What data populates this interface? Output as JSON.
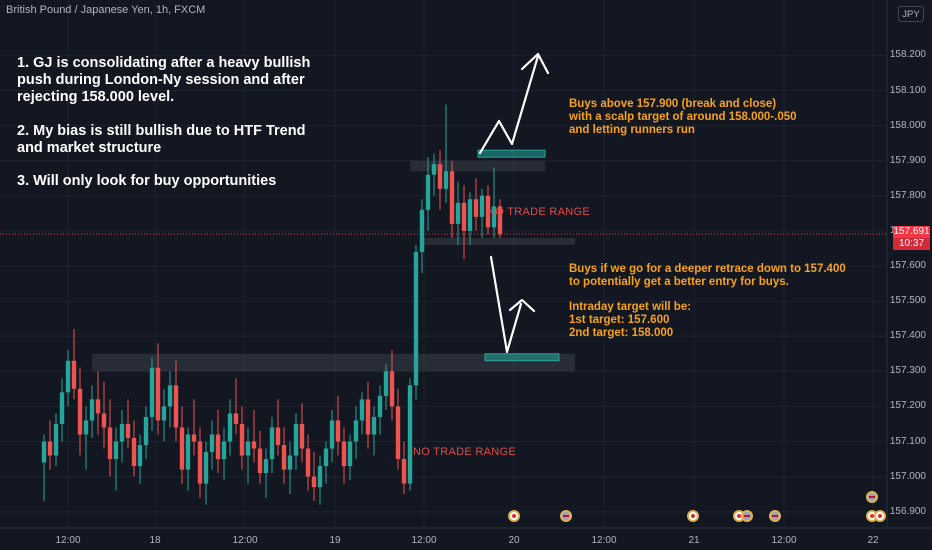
{
  "header": {
    "title": "British Pound / Japanese Yen, 1h, FXCM"
  },
  "currency_label": "JPY",
  "notes": {
    "left": [
      "1. GJ is consolidating after a heavy bullish",
      "push during London-Ny session and after",
      "rejecting 158.000 level.",
      "",
      "2. My bias is still bullish due to HTF Trend",
      "and market structure",
      "",
      "3. Will only look for buy opportunities"
    ],
    "upper_right": [
      "Buys above 157.900 (break and close)",
      "with a scalp target of around 158.000-.050",
      "and letting runners run"
    ],
    "lower_right": [
      "Buys if we go for a deeper retrace down to 157.400",
      "to potentially get a better entry for buys.",
      "",
      "Intraday target will be:",
      "1st target: 157.600",
      "2nd target: 158.000"
    ]
  },
  "labels": {
    "no_trade_upper": "NO TRADE RANGE",
    "no_trade_lower": "NO TRADE RANGE"
  },
  "price_axis": {
    "ticks": [
      "158.200",
      "158.100",
      "158.000",
      "157.900",
      "157.800",
      "157.700",
      "157.600",
      "157.500",
      "157.400",
      "157.300",
      "157.200",
      "157.100",
      "157.000",
      "156.900"
    ],
    "current_price": "157.691",
    "countdown": "10:37"
  },
  "time_axis": {
    "ticks": [
      "12:00",
      "18",
      "12:00",
      "19",
      "12:00",
      "20",
      "12:00",
      "21",
      "12:00",
      "22"
    ]
  },
  "colors": {
    "background": "#131722",
    "up": "#26a69a",
    "down": "#ef5350",
    "note_orange": "#f7a21b",
    "no_trade": "#e04a4a"
  },
  "chart_data": {
    "type": "candlestick",
    "symbol": "GBPJPY",
    "ylim": [
      156.88,
      158.27
    ],
    "current_price": 157.691,
    "zones": [
      {
        "kind": "range",
        "from": 157.87,
        "to": 157.9
      },
      {
        "kind": "range",
        "from": 157.66,
        "to": 157.68
      },
      {
        "kind": "range",
        "from": 157.3,
        "to": 157.35
      },
      {
        "kind": "buy-zone",
        "from": 157.91,
        "to": 157.93
      },
      {
        "kind": "buy-zone",
        "from": 157.33,
        "to": 157.35
      }
    ],
    "candles": [
      [
        157.04,
        157.12,
        156.93,
        157.1
      ],
      [
        157.1,
        157.16,
        157.02,
        157.06
      ],
      [
        157.06,
        157.18,
        157.03,
        157.15
      ],
      [
        157.15,
        157.28,
        157.1,
        157.24
      ],
      [
        157.24,
        157.36,
        157.2,
        157.33
      ],
      [
        157.33,
        157.42,
        157.22,
        157.25
      ],
      [
        157.25,
        157.31,
        157.06,
        157.12
      ],
      [
        157.12,
        157.2,
        157.02,
        157.16
      ],
      [
        157.16,
        157.26,
        157.11,
        157.22
      ],
      [
        157.22,
        157.3,
        157.12,
        157.18
      ],
      [
        157.18,
        157.27,
        157.08,
        157.14
      ],
      [
        157.14,
        157.22,
        157.0,
        157.05
      ],
      [
        157.05,
        157.14,
        156.96,
        157.1
      ],
      [
        157.1,
        157.19,
        157.04,
        157.15
      ],
      [
        157.15,
        157.22,
        157.08,
        157.11
      ],
      [
        157.11,
        157.16,
        157.0,
        157.03
      ],
      [
        157.03,
        157.12,
        156.98,
        157.09
      ],
      [
        157.09,
        157.2,
        157.05,
        157.17
      ],
      [
        157.17,
        157.34,
        157.13,
        157.31
      ],
      [
        157.31,
        157.38,
        157.12,
        157.16
      ],
      [
        157.16,
        157.25,
        157.1,
        157.2
      ],
      [
        157.2,
        157.3,
        157.14,
        157.26
      ],
      [
        157.26,
        157.33,
        157.1,
        157.14
      ],
      [
        157.14,
        157.2,
        156.98,
        157.02
      ],
      [
        157.02,
        157.14,
        156.96,
        157.12
      ],
      [
        157.12,
        157.22,
        157.06,
        157.1
      ],
      [
        157.1,
        157.14,
        156.94,
        156.98
      ],
      [
        156.98,
        157.1,
        156.92,
        157.07
      ],
      [
        157.07,
        157.16,
        157.02,
        157.12
      ],
      [
        157.12,
        157.19,
        157.01,
        157.05
      ],
      [
        157.05,
        157.14,
        156.99,
        157.1
      ],
      [
        157.1,
        157.22,
        157.06,
        157.18
      ],
      [
        157.18,
        157.28,
        157.12,
        157.15
      ],
      [
        157.15,
        157.2,
        157.02,
        157.06
      ],
      [
        157.06,
        157.14,
        156.98,
        157.1
      ],
      [
        157.1,
        157.19,
        157.04,
        157.08
      ],
      [
        157.08,
        157.13,
        156.98,
        157.01
      ],
      [
        157.01,
        157.08,
        156.94,
        157.05
      ],
      [
        157.05,
        157.17,
        157.01,
        157.14
      ],
      [
        157.14,
        157.22,
        157.06,
        157.09
      ],
      [
        157.09,
        157.14,
        156.98,
        157.02
      ],
      [
        157.02,
        157.1,
        156.95,
        157.06
      ],
      [
        157.06,
        157.18,
        157.02,
        157.15
      ],
      [
        157.15,
        157.21,
        157.04,
        157.08
      ],
      [
        157.08,
        157.12,
        156.96,
        157.0
      ],
      [
        157.0,
        157.07,
        156.93,
        156.97
      ],
      [
        156.97,
        157.06,
        156.92,
        157.03
      ],
      [
        157.03,
        157.1,
        156.98,
        157.08
      ],
      [
        157.08,
        157.19,
        157.04,
        157.16
      ],
      [
        157.16,
        157.23,
        157.06,
        157.1
      ],
      [
        157.1,
        157.14,
        156.98,
        157.03
      ],
      [
        157.03,
        157.12,
        156.99,
        157.1
      ],
      [
        157.1,
        157.2,
        157.05,
        157.16
      ],
      [
        157.16,
        157.24,
        157.12,
        157.22
      ],
      [
        157.22,
        157.27,
        157.08,
        157.12
      ],
      [
        157.12,
        157.2,
        157.06,
        157.17
      ],
      [
        157.17,
        157.26,
        157.12,
        157.23
      ],
      [
        157.23,
        157.32,
        157.19,
        157.3
      ],
      [
        157.3,
        157.36,
        157.16,
        157.2
      ],
      [
        157.2,
        157.25,
        157.02,
        157.05
      ],
      [
        157.05,
        157.1,
        156.95,
        156.98
      ],
      [
        156.98,
        157.28,
        156.96,
        157.26
      ],
      [
        157.26,
        157.66,
        157.22,
        157.64
      ],
      [
        157.64,
        157.79,
        157.58,
        157.76
      ],
      [
        157.76,
        157.91,
        157.7,
        157.86
      ],
      [
        157.86,
        157.92,
        157.8,
        157.89
      ],
      [
        157.89,
        157.93,
        157.76,
        157.82
      ],
      [
        157.82,
        158.06,
        157.78,
        157.87
      ],
      [
        157.87,
        157.9,
        157.68,
        157.72
      ],
      [
        157.72,
        157.84,
        157.66,
        157.78
      ],
      [
        157.78,
        157.83,
        157.62,
        157.7
      ],
      [
        157.7,
        157.81,
        157.66,
        157.79
      ],
      [
        157.79,
        157.85,
        157.7,
        157.74
      ],
      [
        157.74,
        157.82,
        157.68,
        157.8
      ],
      [
        157.8,
        157.83,
        157.69,
        157.71
      ],
      [
        157.71,
        157.88,
        157.68,
        157.77
      ],
      [
        157.77,
        157.79,
        157.68,
        157.69
      ]
    ]
  }
}
